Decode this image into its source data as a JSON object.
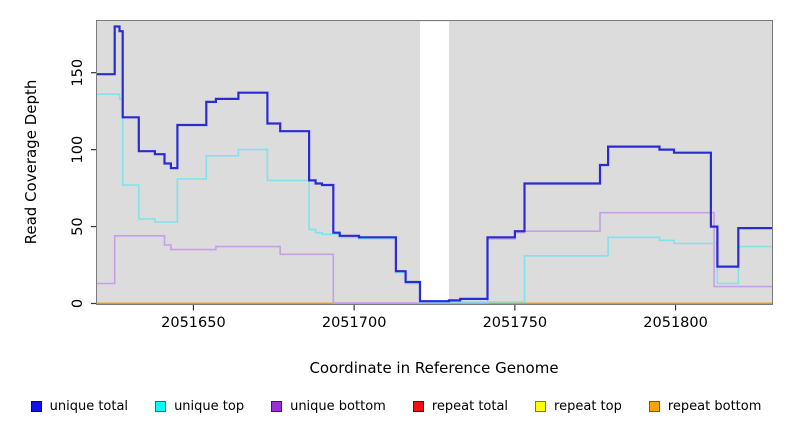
{
  "chart_data": {
    "type": "line",
    "step": true,
    "title": "",
    "xlabel": "Coordinate in Reference Genome",
    "ylabel": "Read Coverage Depth",
    "xlim": [
      2051620,
      2051830
    ],
    "ylim": [
      0,
      183.6
    ],
    "x_ticks": [
      2051650,
      2051700,
      2051750,
      2051800
    ],
    "y_ticks": [
      0,
      50,
      100,
      150
    ],
    "grid": false,
    "legend_position": "bottom",
    "panel_bg": "#dcdcdc",
    "border_color": "#7b7b7b",
    "tick_color": "#333333",
    "text_color": "#000000",
    "gap": {
      "from": 2051720.5,
      "to": 2051729.5,
      "color": "#ffffff",
      "note": "no-data white band"
    },
    "series": [
      {
        "name": "unique total",
        "line_color": "#2b2bd5",
        "legend_fill": "#1111ee",
        "legend_border": "#000088",
        "width": 2.2,
        "points": [
          [
            2051620,
            149
          ],
          [
            2051625.5,
            180
          ],
          [
            2051627,
            177
          ],
          [
            2051628,
            121
          ],
          [
            2051633,
            99
          ],
          [
            2051638,
            97
          ],
          [
            2051641,
            91
          ],
          [
            2051643,
            88
          ],
          [
            2051645,
            116
          ],
          [
            2051654,
            131
          ],
          [
            2051657,
            133
          ],
          [
            2051664,
            137
          ],
          [
            2051673,
            117
          ],
          [
            2051677,
            112
          ],
          [
            2051686,
            80
          ],
          [
            2051688,
            78
          ],
          [
            2051690,
            77
          ],
          [
            2051693.5,
            46
          ],
          [
            2051695.5,
            44
          ],
          [
            2051701.5,
            43
          ],
          [
            2051713,
            21
          ],
          [
            2051716,
            14
          ],
          [
            2051720.5,
            1.5
          ],
          [
            2051729.5,
            2
          ],
          [
            2051733,
            3
          ],
          [
            2051741.5,
            43
          ],
          [
            2051750,
            47
          ],
          [
            2051753,
            78
          ],
          [
            2051776.5,
            90
          ],
          [
            2051779,
            102
          ],
          [
            2051795,
            100
          ],
          [
            2051799.5,
            98
          ],
          [
            2051811,
            50
          ],
          [
            2051813,
            24
          ],
          [
            2051819.5,
            49
          ]
        ]
      },
      {
        "name": "unique top",
        "line_color": "#7fe3ec",
        "legend_fill": "#00ffff",
        "legend_border": "#007f8c",
        "width": 1.6,
        "points": [
          [
            2051620,
            136
          ],
          [
            2051627,
            133
          ],
          [
            2051628,
            77
          ],
          [
            2051633,
            55
          ],
          [
            2051638,
            53
          ],
          [
            2051645,
            81
          ],
          [
            2051654,
            96
          ],
          [
            2051664,
            100
          ],
          [
            2051673,
            80
          ],
          [
            2051686,
            48
          ],
          [
            2051688,
            46
          ],
          [
            2051690,
            45
          ],
          [
            2051695.5,
            43
          ],
          [
            2051701.5,
            42
          ],
          [
            2051713,
            20
          ],
          [
            2051716,
            13
          ],
          [
            2051720.5,
            1
          ],
          [
            2051753,
            31
          ],
          [
            2051779,
            43
          ],
          [
            2051795,
            41
          ],
          [
            2051799.5,
            39
          ],
          [
            2051813,
            13
          ],
          [
            2051819.5,
            37
          ]
        ]
      },
      {
        "name": "unique bottom",
        "line_color": "#c79fe6",
        "legend_fill": "#9b30d8",
        "legend_border": "#4b0f7a",
        "width": 1.6,
        "points": [
          [
            2051620,
            13
          ],
          [
            2051625.5,
            44
          ],
          [
            2051641,
            38
          ],
          [
            2051643,
            35
          ],
          [
            2051657,
            37
          ],
          [
            2051677,
            32
          ],
          [
            2051693.5,
            0.4
          ],
          [
            2051741.5,
            42
          ],
          [
            2051750,
            46
          ],
          [
            2051753,
            47
          ],
          [
            2051776.5,
            59
          ],
          [
            2051812,
            11
          ]
        ]
      },
      {
        "name": "repeat total",
        "line_color": "#dd2222",
        "legend_fill": "#ee1111",
        "legend_border": "#7a0000",
        "width": 1.4,
        "points": [
          [
            2051620,
            0
          ]
        ]
      },
      {
        "name": "repeat top",
        "line_color": "#ffff33",
        "legend_fill": "#ffff00",
        "legend_border": "#7f7f00",
        "width": 1.4,
        "points": [
          [
            2051620,
            0
          ]
        ]
      },
      {
        "name": "repeat bottom",
        "line_color": "#ff9407",
        "legend_fill": "#ffa207",
        "legend_border": "#8c5400",
        "width": 1.8,
        "points": [
          [
            2051620,
            0
          ]
        ]
      }
    ],
    "draw_order": [
      3,
      4,
      5,
      2,
      1,
      0
    ]
  },
  "legend": {
    "items": [
      {
        "label": "unique total"
      },
      {
        "label": "unique top"
      },
      {
        "label": "unique bottom"
      },
      {
        "label": "repeat total"
      },
      {
        "label": "repeat top"
      },
      {
        "label": "repeat bottom"
      }
    ]
  }
}
